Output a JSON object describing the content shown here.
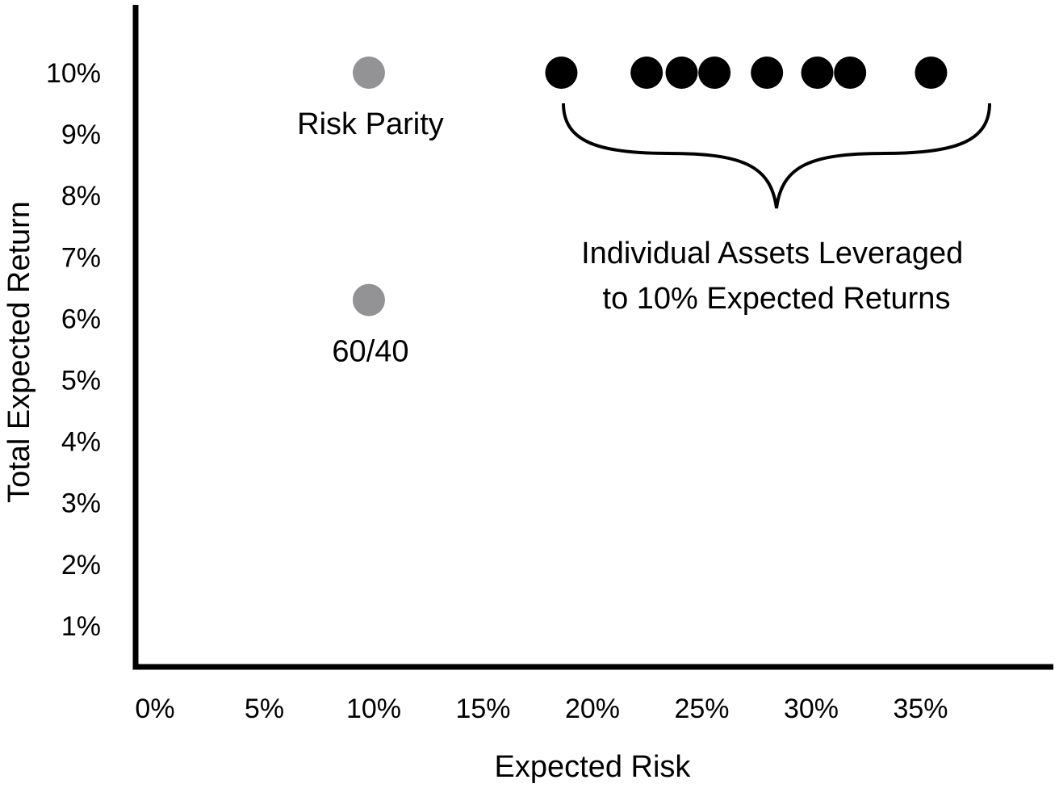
{
  "chart_data": {
    "type": "scatter",
    "xlabel": "Expected Risk",
    "ylabel": "Total Expected Return",
    "xlim": [
      0,
      40
    ],
    "ylim": [
      0,
      11
    ],
    "x_ticks": [
      "0%",
      "5%",
      "10%",
      "15%",
      "20%",
      "25%",
      "30%",
      "35%"
    ],
    "y_ticks": [
      "1%",
      "2%",
      "3%",
      "4%",
      "5%",
      "6%",
      "7%",
      "8%",
      "9%",
      "10%"
    ],
    "grid": false,
    "colors": {
      "portfolio": "#939396",
      "asset": "#000000",
      "axis": "#000000"
    },
    "series": [
      {
        "key": "portfolios",
        "points": [
          {
            "label": "Risk Parity",
            "x": 10.7,
            "y": 10.0
          },
          {
            "label": "60/40",
            "x": 10.7,
            "y": 6.3
          }
        ]
      },
      {
        "key": "assets",
        "points": [
          {
            "x": 19.5,
            "y": 10.0
          },
          {
            "x": 23.4,
            "y": 10.0
          },
          {
            "x": 25.0,
            "y": 10.0
          },
          {
            "x": 26.5,
            "y": 10.0
          },
          {
            "x": 28.9,
            "y": 10.0
          },
          {
            "x": 31.2,
            "y": 10.0
          },
          {
            "x": 32.7,
            "y": 10.0
          },
          {
            "x": 36.4,
            "y": 10.0
          }
        ]
      }
    ],
    "annotations": [
      {
        "text_lines": [
          "Individual Assets Leveraged",
          "to 10% Expected Returns"
        ]
      }
    ]
  }
}
